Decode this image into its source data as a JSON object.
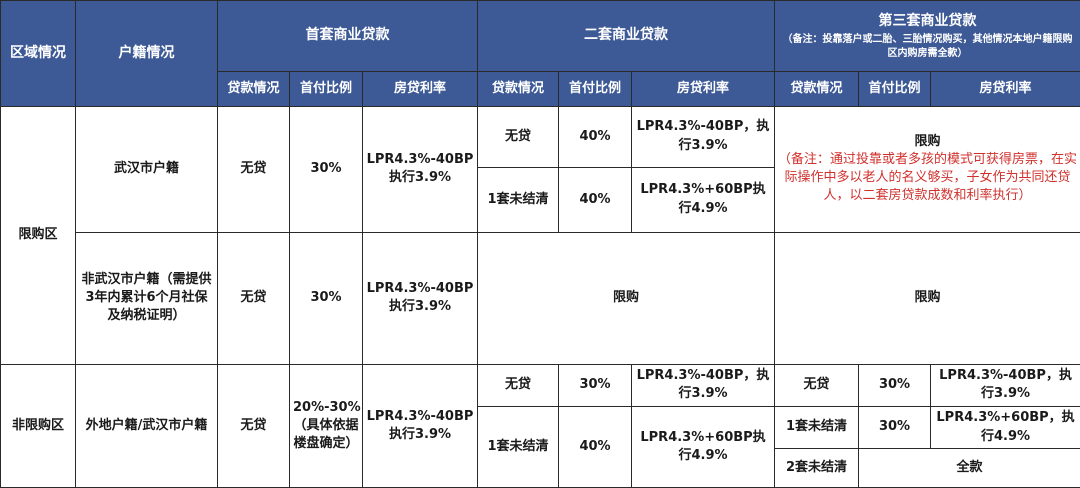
{
  "header": {
    "region": "区域情况",
    "hukou": "户籍情况",
    "first": "首套商业贷款",
    "second": "二套商业贷款",
    "third": "第三套商业贷款",
    "third_note": "（备注：投靠落户或二胎、三胎情况购买，其他情况本地户籍限购区内购房需全款）",
    "loan_status": "贷款情况",
    "down_payment": "首付比例",
    "rate": "房贷利率"
  },
  "restricted": {
    "region": "限购区",
    "wuhan": {
      "hukou": "武汉市户籍",
      "first_status": "无贷",
      "first_down": "30%",
      "first_rate": "LPR4.3%-40BP执行3.9%",
      "second_a_status": "无贷",
      "second_a_down": "40%",
      "second_a_rate": "LPR4.3%-40BP，执行3.9%",
      "second_b_status": "1套未结清",
      "second_b_down": "40%",
      "second_b_rate": "LPR4.3%+60BP执行4.9%",
      "third_title": "限购",
      "third_note": "（备注：通过投靠或者多孩的模式可获得房票，在实际操作中多以老人的名义够买，子女作为共同还贷人，以二套房贷款成数和利率执行）"
    },
    "non_wuhan": {
      "hukou": "非武汉市户籍（需提供3年内累计6个月社保及纳税证明）",
      "first_status": "无贷",
      "first_down": "30%",
      "first_rate": "LPR4.3%-40BP执行3.9%",
      "second": "限购",
      "third": "限购"
    }
  },
  "unrestricted": {
    "region": "非限购区",
    "hukou": "外地户籍/武汉市户籍",
    "first_status": "无贷",
    "first_down": "20%-30%（具体依据楼盘确定）",
    "first_rate": "LPR4.3%-40BP执行3.9%",
    "second_a_status": "无贷",
    "second_a_down": "30%",
    "second_a_rate": "LPR4.3%-40BP，执行3.9%",
    "second_b_status": "1套未结清",
    "second_b_down": "40%",
    "second_b_rate": "LPR4.3%+60BP执行4.9%",
    "third_a_status": "无贷",
    "third_a_down": "30%",
    "third_a_rate": "LPR4.3%-40BP，执行3.9%",
    "third_b_status": "1套未结清",
    "third_b_down": "30%",
    "third_b_rate": "LPR4.3%+60BP，执行4.9%",
    "third_c_status": "2套未结清",
    "third_c_value": "全款"
  }
}
